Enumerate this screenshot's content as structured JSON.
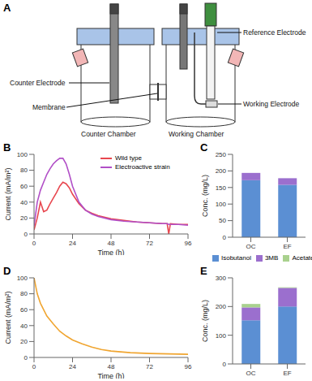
{
  "diagram": {
    "title": "A",
    "labels": {
      "reference": "Reference Electrode",
      "counter_electrode": "Counter Electrode",
      "membrane": "Membrane",
      "working_electrode": "Working Electrode",
      "counter_chamber": "Counter Chamber",
      "working_chamber": "Working Chamber"
    }
  },
  "chart_data": [
    {
      "type": "line",
      "title": "B",
      "x_label": "Time (h)",
      "y_label": "Current (mA/m²)",
      "x": [
        0,
        2,
        4,
        6,
        8,
        10,
        12,
        14,
        16,
        18,
        20,
        22,
        24,
        28,
        32,
        36,
        40,
        48,
        56,
        64,
        72,
        80,
        83,
        84,
        85,
        90,
        96
      ],
      "series": [
        {
          "name": "Wild type",
          "color": "#e8474f",
          "values": [
            5,
            20,
            40,
            28,
            30,
            38,
            45,
            52,
            60,
            65,
            63,
            58,
            50,
            38,
            30,
            26,
            23,
            19,
            17,
            15,
            14,
            13,
            13,
            0,
            13,
            12,
            12
          ]
        },
        {
          "name": "Electroactive strain",
          "color": "#b14fc7",
          "values": [
            10,
            40,
            55,
            65,
            75,
            82,
            88,
            92,
            95,
            95,
            88,
            75,
            60,
            40,
            30,
            25,
            22,
            18,
            16,
            15,
            14,
            13,
            13,
            12,
            12,
            12,
            11
          ]
        }
      ],
      "xlim": [
        0,
        96
      ],
      "xticks": [
        0,
        24,
        48,
        72,
        96
      ],
      "ylim": [
        0,
        100
      ],
      "yticks": [
        0,
        20,
        40,
        60,
        80,
        100
      ],
      "legend": "upper right"
    },
    {
      "type": "bar",
      "title": "C",
      "y_label": "Conc. (mg/L)",
      "categories": [
        "OC",
        "EF"
      ],
      "series": [
        {
          "name": "Isobutanol",
          "color": "#5b8fd3",
          "values": [
            172,
            158
          ]
        },
        {
          "name": "3MB",
          "color": "#9b6fce",
          "values": [
            22,
            20
          ]
        },
        {
          "name": "Acetate",
          "color": "#a9d18e",
          "values": [
            0,
            0
          ]
        }
      ],
      "stacked": true,
      "ylim": [
        0,
        250
      ],
      "yticks": [
        0,
        50,
        100,
        150,
        200,
        250
      ],
      "legend": "bottom"
    },
    {
      "type": "line",
      "title": "D",
      "x_label": "Time (h)",
      "y_label": "Current (mA/m²)",
      "x": [
        0,
        2,
        4,
        8,
        12,
        16,
        20,
        24,
        30,
        36,
        42,
        48,
        60,
        72,
        96
      ],
      "series": [
        {
          "name": "Current",
          "color": "#f0a530",
          "values": [
            100,
            80,
            68,
            52,
            42,
            33,
            27,
            22,
            17,
            13,
            10,
            8,
            6,
            5,
            4
          ]
        }
      ],
      "xlim": [
        0,
        96
      ],
      "xticks": [
        0,
        24,
        48,
        72,
        96
      ],
      "ylim": [
        0,
        100
      ],
      "yticks": [
        0,
        20,
        40,
        60,
        80,
        100
      ]
    },
    {
      "type": "bar",
      "title": "E",
      "y_label": "Conc. (mg/L)",
      "categories": [
        "OC",
        "EF"
      ],
      "series": [
        {
          "name": "Isobutanol",
          "color": "#5b8fd3",
          "values": [
            152,
            200
          ]
        },
        {
          "name": "3MB",
          "color": "#9b6fce",
          "values": [
            45,
            65
          ]
        },
        {
          "name": "Acetate",
          "color": "#a9d18e",
          "values": [
            12,
            2
          ]
        }
      ],
      "stacked": true,
      "ylim": [
        0,
        300
      ],
      "yticks": [
        0,
        100,
        200,
        300
      ]
    }
  ]
}
